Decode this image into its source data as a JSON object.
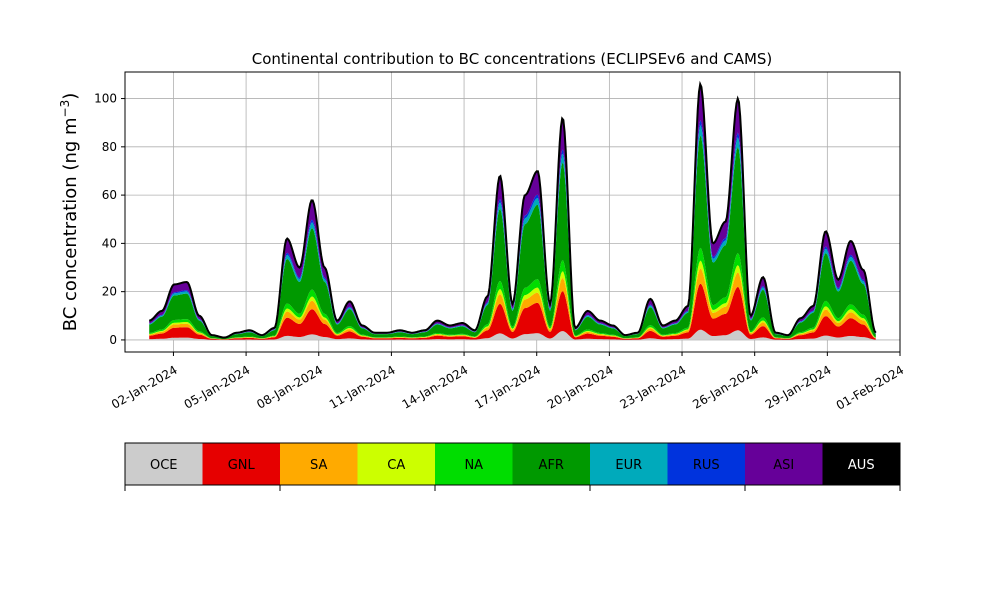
{
  "chart_data": {
    "type": "area",
    "stacked": true,
    "title": "Continental contribution to BC concentrations (ECLIPSEv6 and CAMS)",
    "ylabel_main": "BC concentration (ng m",
    "ylabel_sup": "−3",
    "ylabel_tail": ")",
    "xlabel": "",
    "x_start": "2024-01-01",
    "x_end": "2024-01-31",
    "xlim": [
      "2023-12-31",
      "2024-02-01"
    ],
    "ylim": [
      -5,
      111
    ],
    "grid": true,
    "x_tick_labels": [
      "02-Jan-2024",
      "05-Jan-2024",
      "08-Jan-2024",
      "11-Jan-2024",
      "14-Jan-2024",
      "17-Jan-2024",
      "20-Jan-2024",
      "23-Jan-2024",
      "26-Jan-2024",
      "29-Jan-2024",
      "01-Feb-2024"
    ],
    "y_ticks": [
      0,
      20,
      40,
      60,
      80,
      100
    ],
    "total_peaks": [
      {
        "x": "2024-01-01",
        "y": 8
      },
      {
        "x": "2024-01-01",
        "y": 12
      },
      {
        "x": "2024-01-02",
        "y": 23
      },
      {
        "x": "2024-01-02",
        "y": 24
      },
      {
        "x": "2024-01-02",
        "y": 10
      },
      {
        "x": "2024-01-02",
        "y": 2
      },
      {
        "x": "2024-01-03",
        "y": 1
      },
      {
        "x": "2024-01-03",
        "y": 3
      },
      {
        "x": "2024-01-04",
        "y": 4
      },
      {
        "x": "2024-01-04",
        "y": 2
      },
      {
        "x": "2024-01-04",
        "y": 5
      },
      {
        "x": "2024-01-05",
        "y": 42
      },
      {
        "x": "2024-01-05",
        "y": 30
      },
      {
        "x": "2024-01-05",
        "y": 58
      },
      {
        "x": "2024-01-06",
        "y": 30
      },
      {
        "x": "2024-01-06",
        "y": 8
      },
      {
        "x": "2024-01-07",
        "y": 16
      },
      {
        "x": "2024-01-07",
        "y": 6
      },
      {
        "x": "2024-01-08",
        "y": 3
      },
      {
        "x": "2024-01-09",
        "y": 3
      },
      {
        "x": "2024-01-10",
        "y": 4
      },
      {
        "x": "2024-01-10",
        "y": 3
      },
      {
        "x": "2024-01-11",
        "y": 4
      },
      {
        "x": "2024-01-11",
        "y": 8
      },
      {
        "x": "2024-01-12",
        "y": 6
      },
      {
        "x": "2024-01-12",
        "y": 7
      },
      {
        "x": "2024-01-13",
        "y": 4
      },
      {
        "x": "2024-01-13",
        "y": 18
      },
      {
        "x": "2024-01-14",
        "y": 68
      },
      {
        "x": "2024-01-14",
        "y": 15
      },
      {
        "x": "2024-01-15",
        "y": 60
      },
      {
        "x": "2024-01-15",
        "y": 70
      },
      {
        "x": "2024-01-16",
        "y": 15
      },
      {
        "x": "2024-01-16",
        "y": 92
      },
      {
        "x": "2024-01-17",
        "y": 5
      },
      {
        "x": "2024-01-17",
        "y": 12
      },
      {
        "x": "2024-01-18",
        "y": 8
      },
      {
        "x": "2024-01-19",
        "y": 6
      },
      {
        "x": "2024-01-20",
        "y": 2
      },
      {
        "x": "2024-01-20",
        "y": 3
      },
      {
        "x": "2024-01-21",
        "y": 17
      },
      {
        "x": "2024-01-21",
        "y": 6
      },
      {
        "x": "2024-01-22",
        "y": 8
      },
      {
        "x": "2024-01-22",
        "y": 14
      },
      {
        "x": "2024-01-23",
        "y": 106
      },
      {
        "x": "2024-01-23",
        "y": 40
      },
      {
        "x": "2024-01-24",
        "y": 49
      },
      {
        "x": "2024-01-24",
        "y": 100
      },
      {
        "x": "2024-01-25",
        "y": 10
      },
      {
        "x": "2024-01-25",
        "y": 26
      },
      {
        "x": "2024-01-26",
        "y": 3
      },
      {
        "x": "2024-01-27",
        "y": 2
      },
      {
        "x": "2024-01-28",
        "y": 9
      },
      {
        "x": "2024-01-29",
        "y": 14
      },
      {
        "x": "2024-01-29",
        "y": 45
      },
      {
        "x": "2024-01-30",
        "y": 25
      },
      {
        "x": "2024-01-30",
        "y": 41
      },
      {
        "x": "2024-01-31",
        "y": 29
      },
      {
        "x": "2024-01-31",
        "y": 3
      }
    ],
    "component_fractions": {
      "OCE": 0.04,
      "GNL": 0.18,
      "SA": 0.06,
      "CA": 0.03,
      "NA": 0.05,
      "AFR": 0.44,
      "EUR": 0.04,
      "RUS": 0.02,
      "ASI": 0.14,
      "AUS": 0.0
    },
    "legend": [
      {
        "name": "OCE",
        "color": "#cccccc",
        "text_color": "#000000"
      },
      {
        "name": "GNL",
        "color": "#e60000",
        "text_color": "#000000"
      },
      {
        "name": "SA",
        "color": "#ffaa00",
        "text_color": "#000000"
      },
      {
        "name": "CA",
        "color": "#ccff00",
        "text_color": "#000000"
      },
      {
        "name": "NA",
        "color": "#00dd00",
        "text_color": "#000000"
      },
      {
        "name": "AFR",
        "color": "#009900",
        "text_color": "#000000"
      },
      {
        "name": "EUR",
        "color": "#00aabb",
        "text_color": "#000000"
      },
      {
        "name": "RUS",
        "color": "#0033dd",
        "text_color": "#000000"
      },
      {
        "name": "ASI",
        "color": "#660099",
        "text_color": "#000000"
      },
      {
        "name": "AUS",
        "color": "#000000",
        "text_color": "#ffffff"
      }
    ],
    "legend_placement": "below"
  }
}
